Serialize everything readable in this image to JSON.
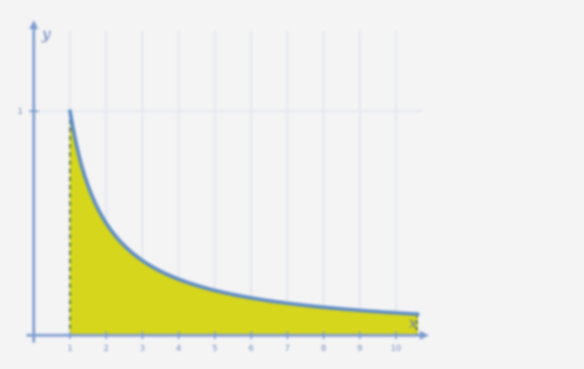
{
  "chart_data": {
    "type": "area",
    "title": "",
    "xlabel": "x",
    "ylabel": "y",
    "function": "y = 1/x",
    "xlim": [
      0,
      10.6
    ],
    "ylim": [
      0,
      1.28
    ],
    "x_ticks": [
      1,
      2,
      3,
      4,
      5,
      6,
      7,
      8,
      9,
      10
    ],
    "x_tick_labels": [
      "1",
      "2",
      "3",
      "4",
      "5",
      "6",
      "7",
      "8",
      "9",
      "10"
    ],
    "y_ticks": [
      1
    ],
    "y_tick_labels": [
      "1"
    ],
    "shaded_interval": [
      1,
      10.6
    ],
    "grid": true,
    "series": [
      {
        "x": [
          1,
          1.25,
          1.5,
          2,
          2.5,
          3,
          4,
          5,
          6,
          7,
          8,
          9,
          10,
          10.6
        ],
        "y": [
          1,
          0.8,
          0.667,
          0.5,
          0.4,
          0.333,
          0.25,
          0.2,
          0.167,
          0.143,
          0.125,
          0.111,
          0.1,
          0.094
        ]
      }
    ],
    "colors": {
      "background": "#f4f4f5",
      "axis": "#7d9cd0",
      "grid": "#e3e7ef",
      "curve": "#5e8cc6",
      "fill": "#d6d61c",
      "dashed": "#2f4f2f"
    }
  }
}
